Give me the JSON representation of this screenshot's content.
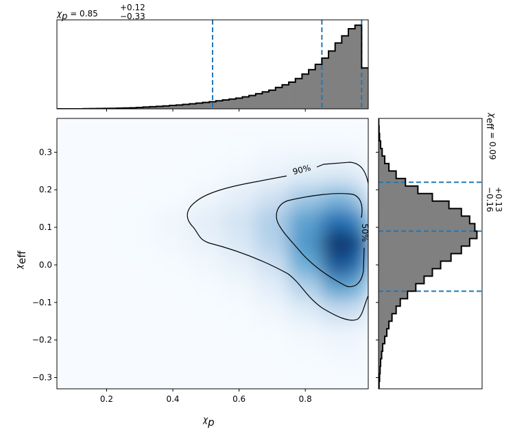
{
  "chart_data": [
    {
      "type": "heatmap",
      "xlabel": {
        "symbol": "χ",
        "sub": "p"
      },
      "ylabel": {
        "symbol": "χ",
        "sub": "eff"
      },
      "xlim": [
        0.05,
        0.99
      ],
      "ylim": [
        -0.33,
        0.39
      ],
      "xticks": [
        0.2,
        0.4,
        0.6,
        0.8
      ],
      "yticks": [
        {
          "value": -0.3,
          "label": "−0.3"
        },
        {
          "value": -0.2,
          "label": "−0.2"
        },
        {
          "value": -0.1,
          "label": "−0.1"
        },
        {
          "value": 0,
          "label": "0.0"
        },
        0.1,
        0.2,
        0.3
      ],
      "colormap": "Blues",
      "contour_labels": [
        "90%",
        "50%"
      ],
      "xbins": [
        0.05,
        0.15,
        0.25,
        0.35,
        0.45,
        0.55,
        0.65,
        0.75,
        0.85,
        0.95,
        0.99
      ],
      "ybins": [
        -0.33,
        -0.27,
        -0.21,
        -0.15,
        -0.09,
        -0.03,
        0.03,
        0.09,
        0.15,
        0.21,
        0.27,
        0.33,
        0.39
      ],
      "z": [
        [
          0,
          0,
          0,
          0,
          0,
          0,
          0,
          0,
          0,
          0.01
        ],
        [
          0,
          0,
          0,
          0,
          0,
          0,
          0,
          0.01,
          0.02,
          0.02
        ],
        [
          0,
          0,
          0,
          0,
          0,
          0,
          0.01,
          0.03,
          0.06,
          0.05
        ],
        [
          0,
          0,
          0,
          0,
          0,
          0.01,
          0.04,
          0.12,
          0.25,
          0.2
        ],
        [
          0,
          0,
          0,
          0,
          0.01,
          0.03,
          0.1,
          0.3,
          0.55,
          0.45
        ],
        [
          0,
          0,
          0,
          0.01,
          0.03,
          0.08,
          0.2,
          0.5,
          0.85,
          0.7
        ],
        [
          0,
          0,
          0.01,
          0.03,
          0.07,
          0.15,
          0.3,
          0.6,
          1.0,
          0.85
        ],
        [
          0,
          0,
          0.01,
          0.04,
          0.1,
          0.18,
          0.32,
          0.55,
          0.75,
          0.6
        ],
        [
          0,
          0,
          0,
          0.01,
          0.04,
          0.1,
          0.2,
          0.35,
          0.45,
          0.3
        ],
        [
          0,
          0,
          0,
          0,
          0.01,
          0.03,
          0.07,
          0.12,
          0.15,
          0.1
        ],
        [
          0,
          0,
          0,
          0,
          0,
          0.01,
          0.02,
          0.03,
          0.04,
          0.02
        ],
        [
          0,
          0,
          0,
          0,
          0,
          0,
          0,
          0,
          0,
          0
        ]
      ]
    },
    {
      "type": "histogram",
      "orientation": "vertical",
      "title": {
        "symbol": "χ",
        "symbol_sub": "p",
        "value": " = 0.85",
        "plus": "+0.12",
        "minus": "−0.33"
      },
      "xlim": [
        0.05,
        0.99
      ],
      "ylim": [
        0,
        1
      ],
      "xticks": [
        0.2,
        0.4,
        0.6,
        0.8
      ],
      "color": "#808080",
      "edgecolor": "#000000",
      "quantile_color": "#1f77b4",
      "quantiles": [
        0.52,
        0.85,
        0.97
      ],
      "bins": [
        0.05,
        0.07,
        0.09,
        0.11,
        0.13,
        0.15,
        0.17,
        0.19,
        0.21,
        0.23,
        0.25,
        0.27,
        0.29,
        0.31,
        0.33,
        0.35,
        0.37,
        0.39,
        0.41,
        0.43,
        0.45,
        0.47,
        0.49,
        0.51,
        0.53,
        0.55,
        0.57,
        0.59,
        0.61,
        0.63,
        0.65,
        0.67,
        0.69,
        0.71,
        0.73,
        0.75,
        0.77,
        0.79,
        0.81,
        0.83,
        0.85,
        0.87,
        0.89,
        0.91,
        0.93,
        0.95,
        0.97,
        0.99
      ],
      "values": [
        0,
        0,
        0,
        0,
        0.002,
        0.003,
        0.004,
        0.005,
        0.006,
        0.008,
        0.01,
        0.012,
        0.015,
        0.02,
        0.024,
        0.028,
        0.033,
        0.038,
        0.043,
        0.05,
        0.057,
        0.064,
        0.072,
        0.08,
        0.09,
        0.1,
        0.11,
        0.12,
        0.135,
        0.15,
        0.17,
        0.19,
        0.21,
        0.24,
        0.27,
        0.3,
        0.34,
        0.39,
        0.44,
        0.5,
        0.57,
        0.65,
        0.74,
        0.82,
        0.9,
        0.94,
        0.46
      ]
    },
    {
      "type": "histogram",
      "orientation": "horizontal",
      "title": {
        "symbol": "χ",
        "symbol_sub": "eff",
        "value": " = 0.09",
        "plus": "+0.13",
        "minus": "−0.16"
      },
      "xlim": [
        0,
        1
      ],
      "ylim": [
        -0.33,
        0.39
      ],
      "yticks": [
        -0.3,
        -0.2,
        -0.1,
        0,
        0.1,
        0.2,
        0.3
      ],
      "color": "#808080",
      "edgecolor": "#000000",
      "quantile_color": "#1f77b4",
      "quantiles": [
        -0.07,
        0.09,
        0.22
      ],
      "bins": [
        -0.33,
        -0.31,
        -0.29,
        -0.27,
        -0.25,
        -0.23,
        -0.21,
        -0.19,
        -0.17,
        -0.15,
        -0.13,
        -0.11,
        -0.09,
        -0.07,
        -0.05,
        -0.03,
        -0.01,
        0.01,
        0.03,
        0.05,
        0.07,
        0.09,
        0.11,
        0.13,
        0.15,
        0.17,
        0.19,
        0.21,
        0.23,
        0.25,
        0.27,
        0.29,
        0.31,
        0.33,
        0.35,
        0.37,
        0.39
      ],
      "values": [
        0.005,
        0.01,
        0.015,
        0.02,
        0.03,
        0.04,
        0.06,
        0.08,
        0.1,
        0.13,
        0.17,
        0.21,
        0.28,
        0.36,
        0.44,
        0.52,
        0.6,
        0.7,
        0.8,
        0.88,
        0.95,
        0.93,
        0.88,
        0.8,
        0.68,
        0.52,
        0.38,
        0.26,
        0.17,
        0.1,
        0.06,
        0.035,
        0.02,
        0.01,
        0.005,
        0.002
      ]
    }
  ]
}
